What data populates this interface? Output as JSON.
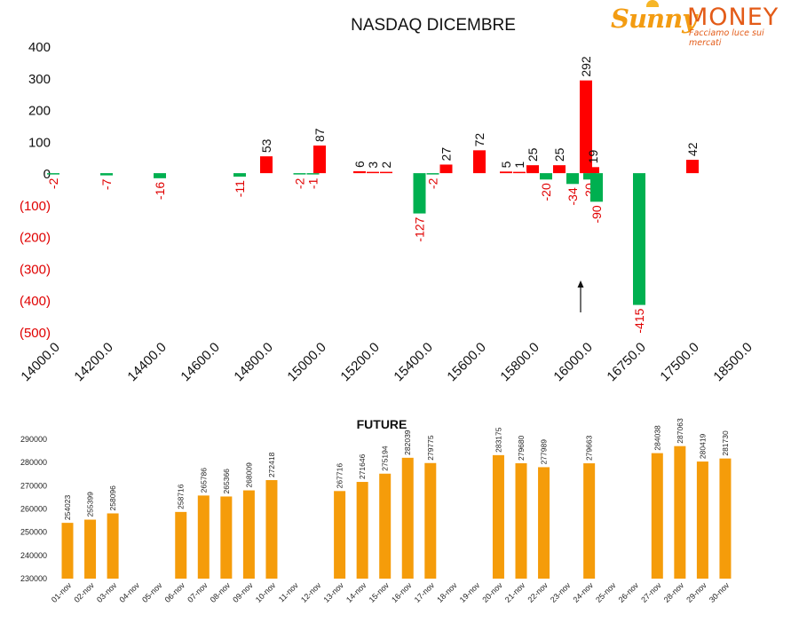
{
  "brand": {
    "name_part1": "Sunny",
    "name_part2": "MONEY",
    "tagline": "Facciamo luce sui mercati"
  },
  "colors": {
    "positive": "#ff0000",
    "negative": "#00b050",
    "future_bar": "#f59c0a",
    "negative_tick_text": "#e00000",
    "brand_orange": "#e35b18"
  },
  "chart_data": [
    {
      "type": "bar",
      "title": "NASDAQ DICEMBRE",
      "xlabel": "",
      "ylabel": "",
      "ylim": [
        -500,
        400
      ],
      "yticks": [
        {
          "value": 400,
          "label": "400"
        },
        {
          "value": 300,
          "label": "300"
        },
        {
          "value": 200,
          "label": "200"
        },
        {
          "value": 100,
          "label": "100"
        },
        {
          "value": 0,
          "label": "0"
        },
        {
          "value": -100,
          "label": "(100)"
        },
        {
          "value": -200,
          "label": "(200)"
        },
        {
          "value": -300,
          "label": "(300)"
        },
        {
          "value": -400,
          "label": "(400)"
        },
        {
          "value": -500,
          "label": "(500)"
        }
      ],
      "xticks": [
        "14000.0",
        "14200.0",
        "14400.0",
        "14600.0",
        "14800.0",
        "15000.0",
        "15200.0",
        "15400.0",
        "15600.0",
        "15800.0",
        "16000.0",
        "16750.0",
        "17500.0",
        "18500.0"
      ],
      "grid": false,
      "legend": "none",
      "annotation": "upward arrow below the 292 bar",
      "bars": [
        {
          "x": 14000.0,
          "value": -2,
          "label": "-2"
        },
        {
          "x": 14200.0,
          "value": -7,
          "label": "-7"
        },
        {
          "x": 14400.0,
          "value": -16,
          "label": "-16"
        },
        {
          "x": 14700.0,
          "value": -11,
          "label": "-11"
        },
        {
          "x": 14800.0,
          "value": 53,
          "label": "53"
        },
        {
          "x": 14925.0,
          "value": -2,
          "label": "-2"
        },
        {
          "x": 14975.0,
          "value": -1,
          "label": "-1"
        },
        {
          "x": 15000.0,
          "value": 87,
          "label": "87"
        },
        {
          "x": 15150.0,
          "value": 6,
          "label": "6"
        },
        {
          "x": 15200.0,
          "value": 3,
          "label": "3"
        },
        {
          "x": 15250.0,
          "value": 2,
          "label": "2"
        },
        {
          "x": 15375.0,
          "value": -127,
          "label": "-127"
        },
        {
          "x": 15425.0,
          "value": -2,
          "label": "-2"
        },
        {
          "x": 15475.0,
          "value": 27,
          "label": "27"
        },
        {
          "x": 15600.0,
          "value": 72,
          "label": "72"
        },
        {
          "x": 15700.0,
          "value": 5,
          "label": "5"
        },
        {
          "x": 15750.0,
          "value": 1,
          "label": "1"
        },
        {
          "x": 15800.0,
          "value": 25,
          "label": "25"
        },
        {
          "x": 15850.0,
          "value": -20,
          "label": "-20"
        },
        {
          "x": 15900.0,
          "value": 25,
          "label": "25"
        },
        {
          "x": 15950.0,
          "value": -34,
          "label": "-34"
        },
        {
          "x": 16000.0,
          "value": 292,
          "label": "292"
        },
        {
          "x": 16050.0,
          "value": -20,
          "label": "-20"
        },
        {
          "x": 16100.0,
          "value": 19,
          "label": "19"
        },
        {
          "x": 16150.0,
          "value": -90,
          "label": "-90"
        },
        {
          "x": 16750.0,
          "value": -415,
          "label": "-415"
        },
        {
          "x": 17500.0,
          "value": 42,
          "label": "42"
        }
      ]
    },
    {
      "type": "bar",
      "title": "FUTURE",
      "xlabel": "",
      "ylabel": "",
      "ylim": [
        230000,
        290000
      ],
      "yticks": [
        "290000",
        "280000",
        "270000",
        "260000",
        "250000",
        "240000",
        "230000"
      ],
      "grid": false,
      "legend": "none",
      "categories": [
        "01-nov",
        "02-nov",
        "03-nov",
        "04-nov",
        "05-nov",
        "06-nov",
        "07-nov",
        "08-nov",
        "09-nov",
        "10-nov",
        "11-nov",
        "12-nov",
        "13-nov",
        "14-nov",
        "15-nov",
        "16-nov",
        "17-nov",
        "18-nov",
        "19-nov",
        "20-nov",
        "21-nov",
        "22-nov",
        "23-nov",
        "24-nov",
        "25-nov",
        "26-nov",
        "27-nov",
        "28-nov",
        "29-nov",
        "30-nov"
      ],
      "values": [
        254023,
        255399,
        258096,
        null,
        null,
        258716,
        265786,
        265366,
        268009,
        272418,
        null,
        null,
        267716,
        271646,
        275194,
        282039,
        279775,
        null,
        null,
        283175,
        279680,
        277989,
        null,
        279663,
        null,
        null,
        284038,
        287063,
        280419,
        281730
      ]
    }
  ]
}
